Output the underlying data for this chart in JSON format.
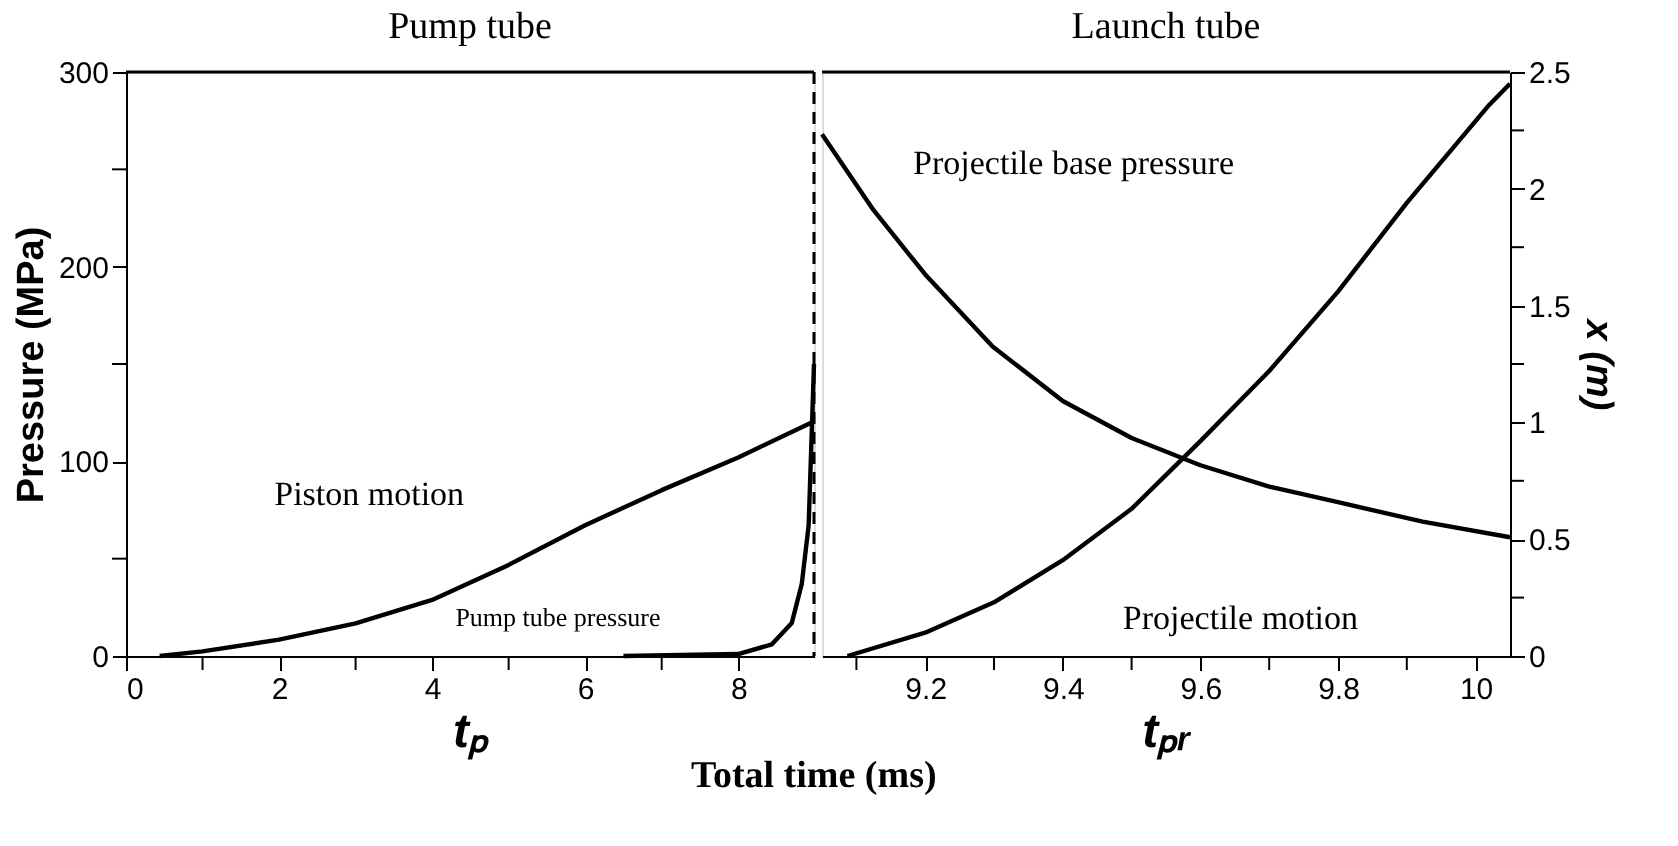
{
  "chart_data": [
    {
      "type": "line",
      "title": "Pump tube",
      "xlabel": "tₚ",
      "ylabel": "Pressure (MPa)",
      "annotations": [
        "Total time (ms)"
      ],
      "xlim": [
        0,
        8.99
      ],
      "xticks": [
        0,
        {
          "value": 1,
          "label": null
        },
        2,
        {
          "value": 3,
          "label": null
        },
        4,
        {
          "value": 5,
          "label": null
        },
        6,
        {
          "value": 7,
          "label": null
        },
        8
      ],
      "ylim": [
        0,
        300
      ],
      "yticks": [
        0,
        {
          "value": 50,
          "label": null
        },
        100,
        {
          "value": 150,
          "label": null
        },
        200,
        {
          "value": 250,
          "label": null
        },
        300
      ],
      "y2lim": [
        0,
        2.5
      ],
      "tick_labels": "xy",
      "ref_lines": [
        {
          "axis": "x",
          "value": 8.99,
          "line_style": "dashed",
          "color": "#000000"
        }
      ],
      "series": [
        {
          "name": "Piston motion",
          "color": "#000000",
          "axis": "y2",
          "x": [
            0.44,
            1,
            2,
            3,
            4,
            5,
            6,
            7,
            8,
            8.96
          ],
          "values": [
            0,
            0.02,
            0.07,
            0.14,
            0.24,
            0.39,
            0.56,
            0.71,
            0.85,
            1.0
          ]
        },
        {
          "name": "Pump tube pressure",
          "color": "#000000",
          "x": [
            6.5,
            8.0,
            8.44,
            8.7,
            8.83,
            8.92,
            8.99
          ],
          "values": [
            0,
            1,
            6,
            17,
            37,
            67,
            150
          ]
        }
      ]
    },
    {
      "type": "line",
      "title": "Launch tube",
      "xlabel": "tₚᵣ",
      "y2label": "x (m)",
      "xlim": [
        9.05,
        10.05
      ],
      "xticks": [
        {
          "value": 9.1,
          "label": null
        },
        9.2,
        {
          "value": 9.3,
          "label": null
        },
        9.4,
        {
          "value": 9.5,
          "label": null
        },
        9.6,
        {
          "value": 9.7,
          "label": null
        },
        9.8,
        {
          "value": 9.9,
          "label": null
        },
        10
      ],
      "ylim": [
        0,
        300
      ],
      "y2lim": [
        0,
        2.5
      ],
      "y2ticks": [
        0,
        {
          "value": 0.25,
          "label": null
        },
        0.5,
        {
          "value": 0.75,
          "label": null
        },
        1,
        {
          "value": 1.25,
          "label": null
        },
        1.5,
        {
          "value": 1.75,
          "label": null
        },
        2,
        {
          "value": 2.25,
          "label": null
        },
        2.5
      ],
      "tick_labels": "xy2",
      "series": [
        {
          "name": "Projectile base pressure",
          "color": "#000000",
          "x": [
            9.05,
            9.125,
            9.2,
            9.298,
            9.4,
            9.5,
            9.6,
            9.7,
            9.8,
            9.923,
            10.05
          ],
          "values": [
            268,
            229,
            196,
            159,
            131,
            112,
            98,
            87,
            79,
            69,
            61
          ]
        },
        {
          "name": "Projectile motion",
          "color": "#000000",
          "axis": "y2",
          "x": [
            9.087,
            9.2,
            9.3,
            9.4,
            9.5,
            9.6,
            9.7,
            9.8,
            9.9,
            10.02,
            10.05
          ],
          "values": [
            0,
            0.1,
            0.23,
            0.41,
            0.63,
            0.92,
            1.22,
            1.56,
            1.94,
            2.36,
            2.45
          ]
        }
      ]
    }
  ]
}
